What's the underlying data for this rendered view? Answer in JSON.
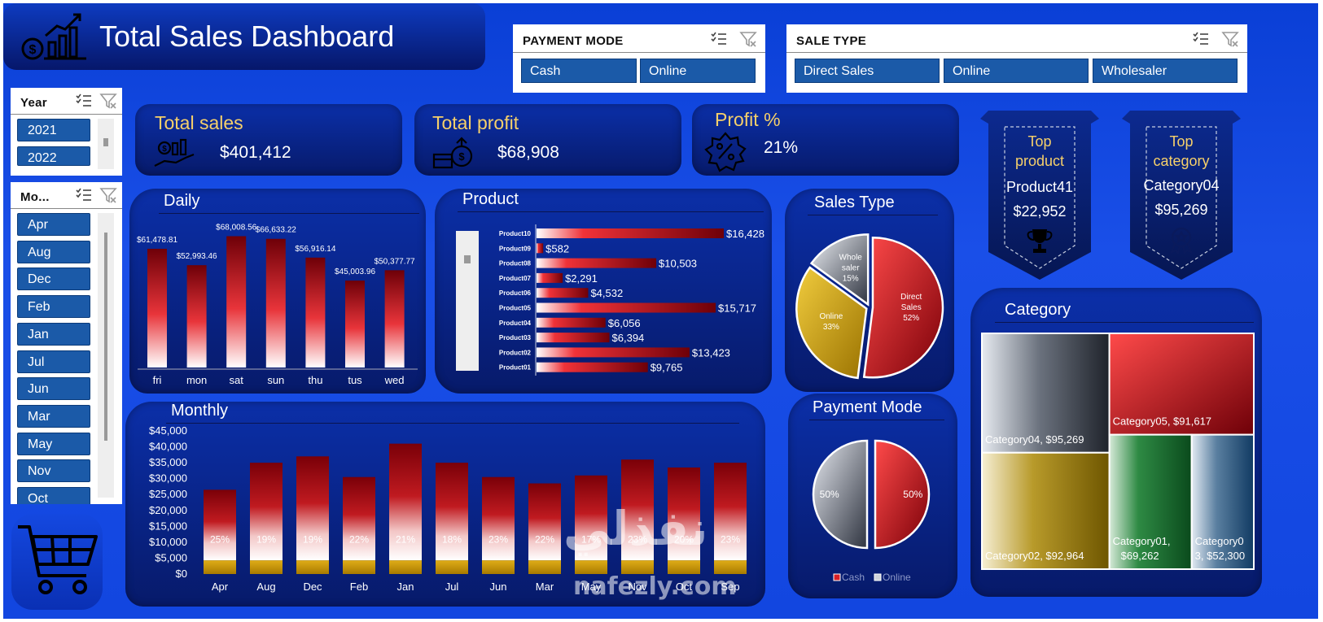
{
  "header": {
    "title": "Total Sales Dashboard"
  },
  "filters": {
    "payment_mode": {
      "label": "PAYMENT MODE",
      "items": [
        "Cash",
        "Online"
      ]
    },
    "sale_type": {
      "label": "SALE TYPE",
      "items": [
        "Direct Sales",
        "Online",
        "Wholesaler"
      ]
    },
    "year": {
      "label": "Year",
      "items": [
        "2021",
        "2022"
      ]
    },
    "month": {
      "label": "Mo...",
      "items": [
        "Apr",
        "Aug",
        "Dec",
        "Feb",
        "Jan",
        "Jul",
        "Jun",
        "Mar",
        "May",
        "Nov",
        "Oct"
      ]
    }
  },
  "kpis": {
    "total_sales": {
      "label": "Total sales",
      "value": "$401,412"
    },
    "total_profit": {
      "label": "Total profit",
      "value": "$68,908"
    },
    "profit_pct": {
      "label": "Profit %",
      "value": "21%"
    }
  },
  "top_product": {
    "label_line1": "Top",
    "label_line2": "product",
    "name": "Product41",
    "value": "$22,952"
  },
  "top_category": {
    "label_line1": "Top",
    "label_line2": "category",
    "name": "Category04",
    "value": "$95,269"
  },
  "colors": {
    "accent_red": "#e0242a",
    "dark_red": "#7a0008",
    "gold": "#c99a06",
    "board_blue": "#1a4fe8",
    "kpi_gold": "#f6d06a"
  },
  "icons": {
    "title": "sales-chart-icon",
    "cart": "shopping-cart-icon",
    "top_product": "trophy-icon",
    "top_category": "medal-icon"
  },
  "watermark": {
    "text": "نفذلي",
    "site": "nafezly.com"
  },
  "chart_data": [
    {
      "id": "daily",
      "type": "bar",
      "title": "Daily",
      "categories": [
        "fri",
        "mon",
        "sat",
        "sun",
        "thu",
        "tus",
        "wed"
      ],
      "values": [
        61478.81,
        52993.46,
        68008.56,
        66633.22,
        56916.14,
        45003.96,
        50377.77
      ],
      "labels": [
        "$61,478.81",
        "$52,993.46",
        "$68,008.56",
        "$66,633.22",
        "$56,916.14",
        "$45,003.96",
        "$50,377.77"
      ]
    },
    {
      "id": "product",
      "type": "bar",
      "orientation": "horizontal",
      "title": "Product",
      "categories": [
        "Product10",
        "Product09",
        "Product08",
        "Product07",
        "Product06",
        "Product05",
        "Product04",
        "Product03",
        "Product02",
        "Product01"
      ],
      "values": [
        16428,
        582,
        10503,
        2291,
        4532,
        15717,
        6056,
        6394,
        13423,
        9765
      ],
      "labels": [
        "$16,428",
        "$582",
        "$10,503",
        "$2,291",
        "$4,532",
        "$15,717",
        "$6,056",
        "$6,394",
        "$13,423",
        "$9,765"
      ]
    },
    {
      "id": "sales_type",
      "type": "pie",
      "title": "Sales Type",
      "slices": [
        {
          "name": "Direct Sales",
          "value": 52,
          "label": "52%",
          "color": "#d91f25"
        },
        {
          "name": "Online",
          "value": 33,
          "label": "33%",
          "color": "#c99a06"
        },
        {
          "name": "Whole saler",
          "value": 15,
          "label": "15%",
          "color": "#6a6f78"
        }
      ]
    },
    {
      "id": "payment_mode",
      "type": "pie",
      "title": "Payment Mode",
      "slices": [
        {
          "name": "Cash",
          "value": 50,
          "label": "50%",
          "color": "#d91f25"
        },
        {
          "name": "Online",
          "value": 50,
          "label": "50%",
          "color": "#6a6f78"
        }
      ],
      "legend": [
        "Cash",
        "Online"
      ],
      "legend_position": "bottom"
    },
    {
      "id": "monthly",
      "type": "bar",
      "stacked": true,
      "title": "Monthly",
      "categories": [
        "Apr",
        "Aug",
        "Dec",
        "Feb",
        "Jan",
        "Jul",
        "Jun",
        "Mar",
        "May",
        "Nov",
        "Oct",
        "Sep"
      ],
      "values": [
        26500,
        35000,
        37000,
        30500,
        41000,
        35000,
        30500,
        28500,
        31000,
        36000,
        33500,
        35000
      ],
      "profit_pct": [
        "25%",
        "19%",
        "19%",
        "22%",
        "21%",
        "18%",
        "23%",
        "22%",
        "17%",
        "23%",
        "20%",
        "23%"
      ],
      "yticks": [
        "$0",
        "$5,000",
        "$10,000",
        "$15,000",
        "$20,000",
        "$25,000",
        "$30,000",
        "$35,000",
        "$40,000",
        "$45,000"
      ],
      "ylim": [
        0,
        45000
      ]
    },
    {
      "id": "category",
      "type": "treemap",
      "title": "Category",
      "items": [
        {
          "name": "Category04",
          "value": 95269,
          "label": "Category04, $95,269"
        },
        {
          "name": "Category02",
          "value": 92964,
          "label": "Category02, $92,964"
        },
        {
          "name": "Category05",
          "value": 91617,
          "label": "Category05, $91,617"
        },
        {
          "name": "Category01",
          "value": 69262,
          "label_line1": "Category01,",
          "label_line2": "$69,262"
        },
        {
          "name": "Category03",
          "value": 52300,
          "label_line1": "Category0",
          "label_line2": "3, $52,300"
        }
      ]
    }
  ]
}
